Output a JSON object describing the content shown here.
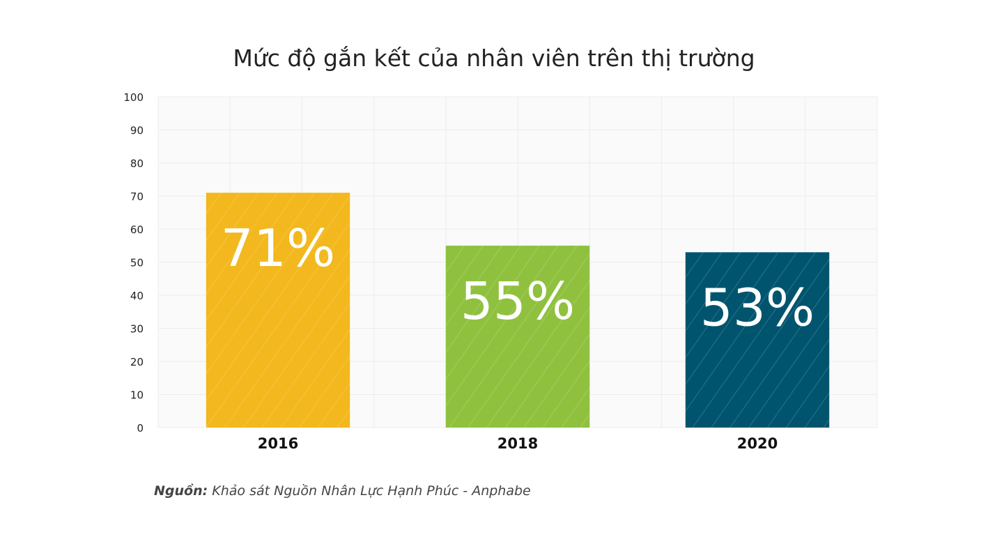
{
  "chart_data": {
    "type": "bar",
    "title": "Mức độ gắn kết của nhân viên trên thị trường",
    "categories": [
      "2016",
      "2018",
      "2020"
    ],
    "values": [
      71,
      55,
      53
    ],
    "data_labels": [
      "71%",
      "55%",
      "53%"
    ],
    "colors": [
      "#f2b81d",
      "#8fc13f",
      "#00546e"
    ],
    "ylim": [
      0,
      100
    ],
    "yticks": [
      0,
      10,
      20,
      30,
      40,
      50,
      60,
      70,
      80,
      90,
      100
    ],
    "ytick_labels": [
      "0",
      "10",
      "20",
      "30",
      "40",
      "50",
      "60",
      "70",
      "80",
      "90",
      "100"
    ],
    "xlabel": "",
    "ylabel": "",
    "grid": true,
    "legend": "none"
  },
  "source": {
    "label": "Nguồn:",
    "text": "Khảo sát Nguồn Nhân Lực Hạnh Phúc - Anphabe"
  }
}
